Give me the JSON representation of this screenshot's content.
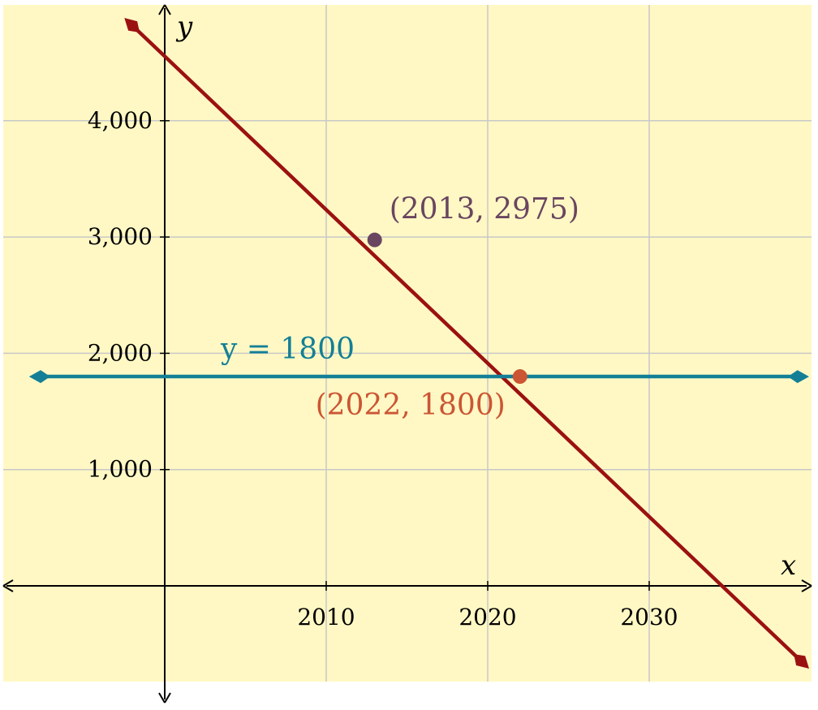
{
  "chart_data": {
    "type": "line",
    "title": "",
    "xlabel": "x",
    "ylabel": "y",
    "xlim": [
      2000,
      2040
    ],
    "ylim": [
      -800,
      5000
    ],
    "grid": true,
    "x_ticks": [
      2010,
      2020,
      2030
    ],
    "x_tick_labels": [
      "2010",
      "2020",
      "2030"
    ],
    "y_ticks": [
      1000,
      2000,
      3000,
      4000
    ],
    "y_tick_labels": [
      "1,000",
      "2,000",
      "3,000",
      "4,000"
    ],
    "series": [
      {
        "color": "#9B1111",
        "style": "line with arrows both ends",
        "x": [
          1997.5,
          2039.9
        ],
        "y": [
          4884,
          -712
        ]
      },
      {
        "label": "y = 1800",
        "color": "#137F97",
        "style": "horizontal line with arrows both ends",
        "x": [
          1991.6,
          2039.9
        ],
        "y": [
          1800,
          1800
        ]
      }
    ],
    "points": [
      {
        "label": "(2013, 2975)",
        "x": 2013,
        "y": 2975,
        "color": "#6A4560"
      },
      {
        "label": "(2022, 1800)",
        "x": 2022,
        "y": 1800,
        "color": "#CC5533"
      }
    ],
    "colors": {
      "background": "#FFF8C4",
      "grid": "#C8C8C8",
      "axis": "#000000"
    }
  }
}
